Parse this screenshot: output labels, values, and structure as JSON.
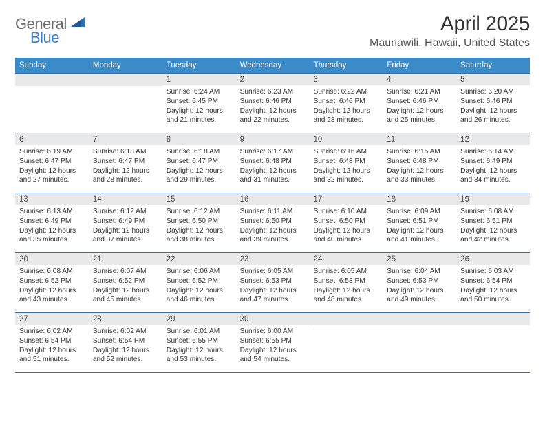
{
  "logo": {
    "general": "General",
    "blue": "Blue"
  },
  "header": {
    "month_title": "April 2025",
    "location": "Maunawili, Hawaii, United States"
  },
  "style": {
    "header_bg": "#3b8bc9",
    "header_text": "#ffffff",
    "row_border": "#3b6ea5",
    "daynum_bg": "#e9e9e9",
    "daynum_text": "#555555",
    "body_text": "#333333",
    "page_bg": "#ffffff",
    "logo_gray": "#6b6b6b",
    "logo_blue": "#3b7fc4",
    "title_fontsize": 30,
    "location_fontsize": 16,
    "weekday_fontsize": 11.5,
    "daynum_fontsize": 11.5,
    "content_fontsize": 10.2
  },
  "weekdays": [
    "Sunday",
    "Monday",
    "Tuesday",
    "Wednesday",
    "Thursday",
    "Friday",
    "Saturday"
  ],
  "weeks": [
    [
      null,
      null,
      {
        "n": "1",
        "sr": "6:24 AM",
        "ss": "6:45 PM",
        "dl": "12 hours and 21 minutes."
      },
      {
        "n": "2",
        "sr": "6:23 AM",
        "ss": "6:46 PM",
        "dl": "12 hours and 22 minutes."
      },
      {
        "n": "3",
        "sr": "6:22 AM",
        "ss": "6:46 PM",
        "dl": "12 hours and 23 minutes."
      },
      {
        "n": "4",
        "sr": "6:21 AM",
        "ss": "6:46 PM",
        "dl": "12 hours and 25 minutes."
      },
      {
        "n": "5",
        "sr": "6:20 AM",
        "ss": "6:46 PM",
        "dl": "12 hours and 26 minutes."
      }
    ],
    [
      {
        "n": "6",
        "sr": "6:19 AM",
        "ss": "6:47 PM",
        "dl": "12 hours and 27 minutes."
      },
      {
        "n": "7",
        "sr": "6:18 AM",
        "ss": "6:47 PM",
        "dl": "12 hours and 28 minutes."
      },
      {
        "n": "8",
        "sr": "6:18 AM",
        "ss": "6:47 PM",
        "dl": "12 hours and 29 minutes."
      },
      {
        "n": "9",
        "sr": "6:17 AM",
        "ss": "6:48 PM",
        "dl": "12 hours and 31 minutes."
      },
      {
        "n": "10",
        "sr": "6:16 AM",
        "ss": "6:48 PM",
        "dl": "12 hours and 32 minutes."
      },
      {
        "n": "11",
        "sr": "6:15 AM",
        "ss": "6:48 PM",
        "dl": "12 hours and 33 minutes."
      },
      {
        "n": "12",
        "sr": "6:14 AM",
        "ss": "6:49 PM",
        "dl": "12 hours and 34 minutes."
      }
    ],
    [
      {
        "n": "13",
        "sr": "6:13 AM",
        "ss": "6:49 PM",
        "dl": "12 hours and 35 minutes."
      },
      {
        "n": "14",
        "sr": "6:12 AM",
        "ss": "6:49 PM",
        "dl": "12 hours and 37 minutes."
      },
      {
        "n": "15",
        "sr": "6:12 AM",
        "ss": "6:50 PM",
        "dl": "12 hours and 38 minutes."
      },
      {
        "n": "16",
        "sr": "6:11 AM",
        "ss": "6:50 PM",
        "dl": "12 hours and 39 minutes."
      },
      {
        "n": "17",
        "sr": "6:10 AM",
        "ss": "6:50 PM",
        "dl": "12 hours and 40 minutes."
      },
      {
        "n": "18",
        "sr": "6:09 AM",
        "ss": "6:51 PM",
        "dl": "12 hours and 41 minutes."
      },
      {
        "n": "19",
        "sr": "6:08 AM",
        "ss": "6:51 PM",
        "dl": "12 hours and 42 minutes."
      }
    ],
    [
      {
        "n": "20",
        "sr": "6:08 AM",
        "ss": "6:52 PM",
        "dl": "12 hours and 43 minutes."
      },
      {
        "n": "21",
        "sr": "6:07 AM",
        "ss": "6:52 PM",
        "dl": "12 hours and 45 minutes."
      },
      {
        "n": "22",
        "sr": "6:06 AM",
        "ss": "6:52 PM",
        "dl": "12 hours and 46 minutes."
      },
      {
        "n": "23",
        "sr": "6:05 AM",
        "ss": "6:53 PM",
        "dl": "12 hours and 47 minutes."
      },
      {
        "n": "24",
        "sr": "6:05 AM",
        "ss": "6:53 PM",
        "dl": "12 hours and 48 minutes."
      },
      {
        "n": "25",
        "sr": "6:04 AM",
        "ss": "6:53 PM",
        "dl": "12 hours and 49 minutes."
      },
      {
        "n": "26",
        "sr": "6:03 AM",
        "ss": "6:54 PM",
        "dl": "12 hours and 50 minutes."
      }
    ],
    [
      {
        "n": "27",
        "sr": "6:02 AM",
        "ss": "6:54 PM",
        "dl": "12 hours and 51 minutes."
      },
      {
        "n": "28",
        "sr": "6:02 AM",
        "ss": "6:54 PM",
        "dl": "12 hours and 52 minutes."
      },
      {
        "n": "29",
        "sr": "6:01 AM",
        "ss": "6:55 PM",
        "dl": "12 hours and 53 minutes."
      },
      {
        "n": "30",
        "sr": "6:00 AM",
        "ss": "6:55 PM",
        "dl": "12 hours and 54 minutes."
      },
      null,
      null,
      null
    ]
  ],
  "labels": {
    "sunrise": "Sunrise:",
    "sunset": "Sunset:",
    "daylight": "Daylight:"
  }
}
